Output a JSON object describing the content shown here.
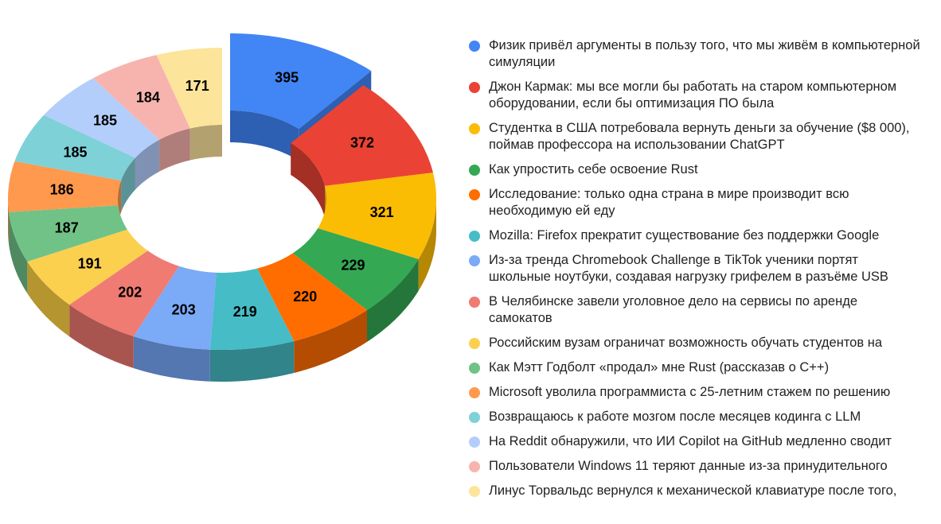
{
  "chart_data": {
    "type": "pie",
    "variant": "3d-donut",
    "title": "",
    "start_angle_deg": 0,
    "direction": "clockwise",
    "exploded_index": 0,
    "legend_position": "right",
    "categories": [
      "Физик привёл аргументы в пользу того, что мы живём в компьютерной симуляции",
      "Джон Кармак: мы все могли бы работать на старом компьютерном оборудовании, если бы оптимизация ПО была",
      "Студентка в США потребовала вернуть деньги за обучение ($8 000), поймав профессора на использовании ChatGPT",
      "Как упростить себе освоение Rust",
      "Исследование: только одна страна в мире производит всю необходимую ей еду",
      "Mozilla: Firefox прекратит существование без поддержки Google",
      "Из-за тренда Chromebook Challenge в TikTok ученики портят школьные ноутбуки, создавая нагрузку грифелем в разъёме USB",
      "В Челябинске завели уголовное дело на сервисы по аренде самокатов",
      "Российским вузам ограничат возможность обучать студентов на",
      "Как Мэтт Годболт «продал» мне Rust (рассказав о C++)",
      "Microsoft уволила программиста с 25-летним стажем по решению",
      "Возвращаюсь к работе мозгом после месяцев кодинга с LLM",
      "На Reddit обнаружили, что ИИ Copilot на GitHub медленно сводит",
      "Пользователи Windows 11 теряют данные из-за принудительного",
      "Линус Торвальдс вернулся к механической клавиатуре после того,"
    ],
    "values": [
      395,
      372,
      321,
      229,
      220,
      219,
      203,
      202,
      191,
      187,
      186,
      185,
      185,
      184,
      171
    ],
    "colors": [
      "#4285f4",
      "#ea4335",
      "#fbbc04",
      "#34a853",
      "#ff6d01",
      "#46bdc6",
      "#7baaf7",
      "#f07b72",
      "#fcd04f",
      "#71c287",
      "#ff994d",
      "#7ed1d7",
      "#b3cefb",
      "#f7b4ae",
      "#fde49b"
    ],
    "side_colors": [
      "#2d5fb3",
      "#a42f25",
      "#b58703",
      "#24763b",
      "#b44d01",
      "#318489",
      "#5476b1",
      "#a85550",
      "#b5952f",
      "#4f8960",
      "#b56c35",
      "#5a9297",
      "#8092b3",
      "#b07e7a",
      "#b4a170"
    ]
  },
  "legend": {
    "items": [
      {
        "label": "Физик привёл аргументы в пользу того, что мы живём в компьютерной симуляции",
        "color": "#4285f4"
      },
      {
        "label": "Джон Кармак: мы все могли бы работать на старом компьютерном оборудовании, если бы оптимизация ПО была",
        "color": "#ea4335"
      },
      {
        "label": "Студентка в США потребовала вернуть деньги за обучение ($8 000), поймав профессора на использовании ChatGPT",
        "color": "#fbbc04"
      },
      {
        "label": "Как упростить себе освоение Rust",
        "color": "#34a853"
      },
      {
        "label": "Исследование: только одна страна в мире производит всю необходимую ей еду",
        "color": "#ff6d01"
      },
      {
        "label": "Mozilla: Firefox прекратит существование без поддержки Google",
        "color": "#46bdc6"
      },
      {
        "label": "Из-за тренда Chromebook Challenge в TikTok ученики портят школьные ноутбуки, создавая нагрузку грифелем в разъёме USB",
        "color": "#7baaf7"
      },
      {
        "label": "В Челябинске завели уголовное дело на сервисы по аренде самокатов",
        "color": "#f07b72"
      },
      {
        "label": "Российским вузам ограничат возможность обучать студентов на",
        "color": "#fcd04f"
      },
      {
        "label": "Как Мэтт Годболт «продал» мне Rust (рассказав о C++)",
        "color": "#71c287"
      },
      {
        "label": "Microsoft уволила программиста с 25-летним стажем по решению",
        "color": "#ff994d"
      },
      {
        "label": "Возвращаюсь к работе мозгом после месяцев кодинга с LLM",
        "color": "#7ed1d7"
      },
      {
        "label": "На Reddit обнаружили, что ИИ Copilot на GitHub медленно сводит",
        "color": "#b3cefb"
      },
      {
        "label": "Пользователи Windows 11 теряют данные из-за принудительного",
        "color": "#f7b4ae"
      },
      {
        "label": "Линус Торвальдс вернулся к механической клавиатуре после того,",
        "color": "#fde49b"
      }
    ]
  }
}
